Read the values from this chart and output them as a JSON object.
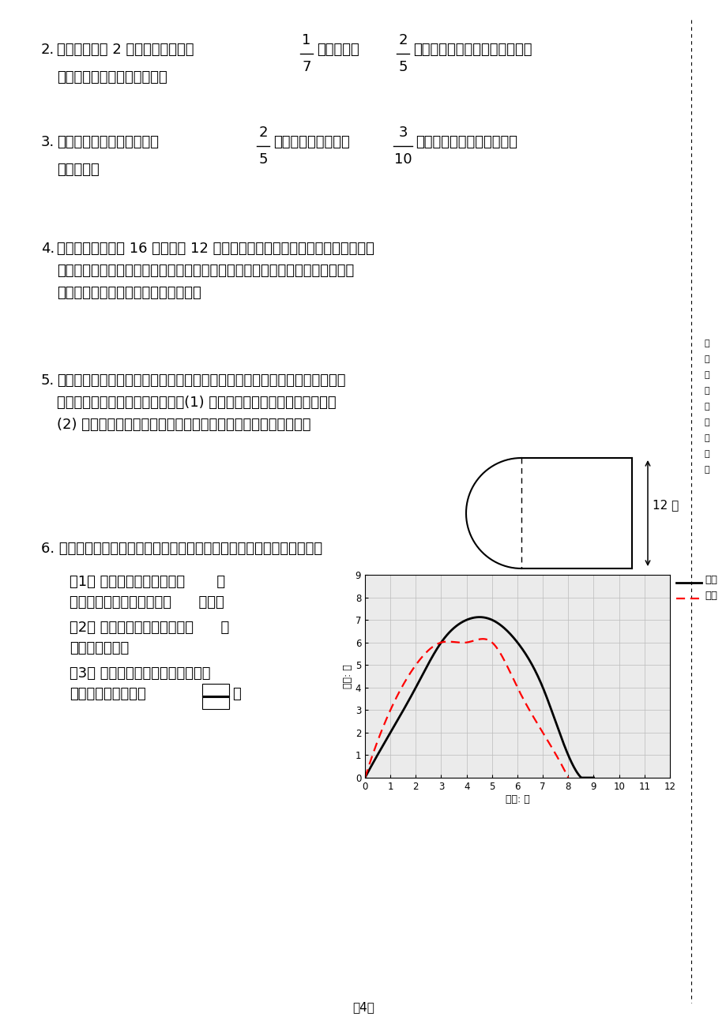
{
  "bg_color": "#ffffff",
  "page_width": 9.2,
  "page_height": 13.02,
  "side_text": [
    "题",
    "处",
    "粘",
    "不",
    "得",
    "里",
    "线",
    "请",
    "内"
  ],
  "graph": {
    "xlabel": "时间: 秒",
    "ylabel": "高度: 米",
    "xmax": 12,
    "ymax": 9,
    "legend_xiaoming": "小明",
    "legend_xiaojun": "小军",
    "xiaoming_x": [
      0,
      1,
      2,
      3,
      4,
      5,
      6,
      7,
      8,
      9
    ],
    "xiaoming_y": [
      0,
      2,
      4,
      6,
      7,
      7,
      6,
      4,
      1,
      0
    ],
    "xiaojun_x": [
      0,
      1,
      2,
      3,
      4,
      5,
      6,
      7,
      8,
      9
    ],
    "xiaojun_y": [
      0,
      3,
      5,
      6,
      6,
      6,
      4,
      2,
      0,
      0
    ]
  },
  "page_num": "－4－"
}
